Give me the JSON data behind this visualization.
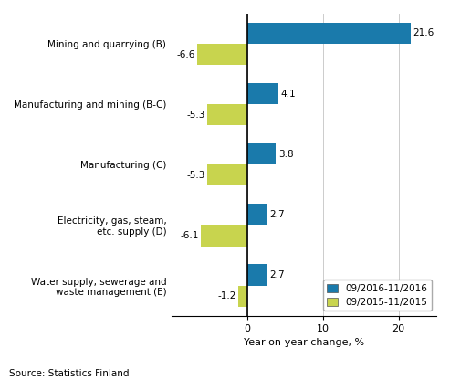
{
  "categories": [
    "Mining and quarrying (B)",
    "Manufacturing and mining (B-C)",
    "Manufacturing (C)",
    "Electricity, gas, steam,\netc. supply (D)",
    "Water supply, sewerage and\nwaste management (E)"
  ],
  "values_2016": [
    21.6,
    4.1,
    3.8,
    2.7,
    2.7
  ],
  "values_2015": [
    -6.6,
    -5.3,
    -5.3,
    -6.1,
    -1.2
  ],
  "color_2016": "#1a7aab",
  "color_2015": "#c8d44e",
  "legend_2016": "09/2016-11/2016",
  "legend_2015": "09/2015-11/2015",
  "xlabel": "Year-on-year change, %",
  "source": "Source: Statistics Finland",
  "xlim": [
    -10,
    25
  ],
  "xticks": [
    0,
    10,
    20
  ],
  "xtick_labels": [
    "0",
    "10",
    "20"
  ],
  "bar_height": 0.35,
  "figsize": [
    4.93,
    4.16
  ],
  "dpi": 100
}
